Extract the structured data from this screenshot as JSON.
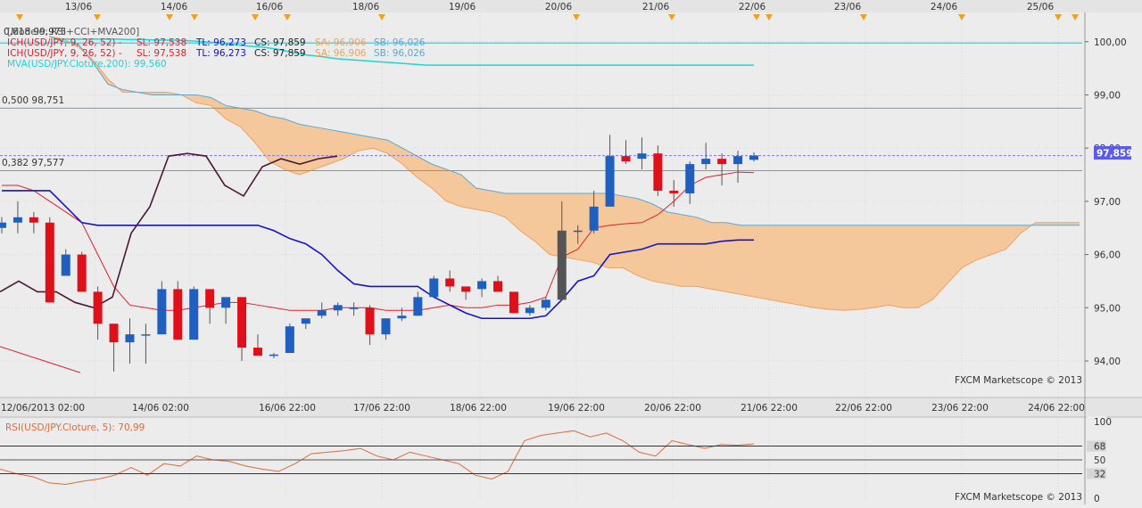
{
  "colors": {
    "background": "#ececec",
    "grid": "#d7d7d7",
    "axis_text": "#333333",
    "up_candle": "#1f5fbf",
    "down_candle": "#e0101a",
    "cloud": "#f6c493",
    "cloud_edge": "#5aa8d2",
    "cyan_line": "#18d7d7",
    "fib_line": "#44b0c8",
    "tenkan": "#e0202a",
    "kijun": "#1414c8",
    "cci": "#4a1838",
    "rsi": "#e06a3a",
    "price_tag": "#5a5aee",
    "marker": "#f0a020"
  },
  "top_date_labels": [
    "13/06",
    "14/06",
    "16/06",
    "18/06",
    "19/06",
    "20/06",
    "21/06",
    "22/06",
    "23/06",
    "24/06",
    "25/06"
  ],
  "bottom_date_labels": [
    "12/06/2013 02:00",
    "14/06 02:00",
    "16/06 22:00",
    "17/06 22:00",
    "18/06 22:00",
    "19/06 22:00",
    "20/06 22:00",
    "21/06 22:00",
    "22/06 22:00",
    "23/06 22:00",
    "24/06 22:00"
  ],
  "legend": {
    "title": "[Modele: RSI+CCI+MVA200]",
    "fib618": "0,618 99,975",
    "ich_prefix": "ICH(USD/JPY, 9, 26, 52) -",
    "sl": "SL: 97,538",
    "tl": "TL: 96,273",
    "cs": "CS: 97,859",
    "sa": "SA: 96,906",
    "sb": "SB: 96,026",
    "mva": "MVA(USD/JPY.Cloture,200): 99,560"
  },
  "fib_labels": {
    "f500": "0,500 98,751",
    "f382": "0,382 97,577"
  },
  "watermark": "FXCM Marketscope © 2013",
  "rsi_label": "RSI(USD/JPY.Cloture, 5): 70,99",
  "chart_data": [
    {
      "type": "candlestick",
      "instrument": "USD/JPY",
      "y_axis": {
        "ticks": [
          "94,00",
          "95,00",
          "96,00",
          "97,00",
          "98,00",
          "99,00",
          "100,00"
        ],
        "range": [
          93.6,
          100.2
        ]
      },
      "current_price": "97,859",
      "fib_levels": [
        {
          "label": "0,618",
          "value": 99.975
        },
        {
          "label": "0,500",
          "value": 98.751
        },
        {
          "label": "0,382",
          "value": 97.577
        }
      ],
      "candles": [
        {
          "o": 96.5,
          "h": 96.7,
          "l": 96.4,
          "c": 96.6
        },
        {
          "o": 96.6,
          "h": 97.0,
          "l": 96.4,
          "c": 96.7
        },
        {
          "o": 96.7,
          "h": 96.8,
          "l": 96.4,
          "c": 96.6
        },
        {
          "o": 96.6,
          "h": 96.7,
          "l": 95.1,
          "c": 95.1
        },
        {
          "o": 95.6,
          "h": 96.1,
          "l": 95.6,
          "c": 96.0
        },
        {
          "o": 96.0,
          "h": 96.05,
          "l": 95.3,
          "c": 95.3
        },
        {
          "o": 95.3,
          "h": 95.4,
          "l": 94.4,
          "c": 94.7
        },
        {
          "o": 94.7,
          "h": 94.7,
          "l": 93.8,
          "c": 94.35
        },
        {
          "o": 94.35,
          "h": 94.8,
          "l": 93.95,
          "c": 94.5
        },
        {
          "o": 94.5,
          "h": 94.7,
          "l": 93.95,
          "c": 94.5
        },
        {
          "o": 94.5,
          "h": 95.5,
          "l": 94.5,
          "c": 95.35
        },
        {
          "o": 95.35,
          "h": 95.5,
          "l": 94.4,
          "c": 94.4
        },
        {
          "o": 94.4,
          "h": 95.4,
          "l": 94.4,
          "c": 95.35
        },
        {
          "o": 95.35,
          "h": 95.35,
          "l": 94.7,
          "c": 95.0
        },
        {
          "o": 95.0,
          "h": 95.2,
          "l": 94.7,
          "c": 95.2
        },
        {
          "o": 95.2,
          "h": 95.2,
          "l": 94.0,
          "c": 94.25
        },
        {
          "o": 94.25,
          "h": 94.5,
          "l": 94.1,
          "c": 94.1
        },
        {
          "o": 94.1,
          "h": 94.15,
          "l": 94.05,
          "c": 94.12
        },
        {
          "o": 94.15,
          "h": 94.7,
          "l": 94.15,
          "c": 94.65
        },
        {
          "o": 94.7,
          "h": 94.8,
          "l": 94.6,
          "c": 94.8
        },
        {
          "o": 94.85,
          "h": 95.1,
          "l": 94.8,
          "c": 94.95
        },
        {
          "o": 94.95,
          "h": 95.1,
          "l": 94.85,
          "c": 95.05
        },
        {
          "o": 95.0,
          "h": 95.1,
          "l": 94.85,
          "c": 95.0
        },
        {
          "o": 95.0,
          "h": 95.05,
          "l": 94.3,
          "c": 94.5
        },
        {
          "o": 94.5,
          "h": 94.8,
          "l": 94.4,
          "c": 94.8
        },
        {
          "o": 94.8,
          "h": 95.0,
          "l": 94.75,
          "c": 94.85
        },
        {
          "o": 94.85,
          "h": 95.3,
          "l": 94.85,
          "c": 95.2
        },
        {
          "o": 95.2,
          "h": 95.6,
          "l": 95.2,
          "c": 95.55
        },
        {
          "o": 95.55,
          "h": 95.7,
          "l": 95.3,
          "c": 95.4
        },
        {
          "o": 95.4,
          "h": 95.4,
          "l": 95.15,
          "c": 95.3
        },
        {
          "o": 95.35,
          "h": 95.55,
          "l": 95.2,
          "c": 95.5
        },
        {
          "o": 95.5,
          "h": 95.6,
          "l": 95.3,
          "c": 95.3
        },
        {
          "o": 95.3,
          "h": 95.3,
          "l": 94.9,
          "c": 94.9
        },
        {
          "o": 94.9,
          "h": 95.05,
          "l": 94.85,
          "c": 95.0
        },
        {
          "o": 95.0,
          "h": 95.2,
          "l": 94.95,
          "c": 95.15
        },
        {
          "o": 95.15,
          "h": 97.0,
          "l": 95.15,
          "c": 96.45
        },
        {
          "o": 96.45,
          "h": 96.55,
          "l": 96.2,
          "c": 96.45
        },
        {
          "o": 96.45,
          "h": 97.2,
          "l": 96.4,
          "c": 96.9
        },
        {
          "o": 96.9,
          "h": 98.25,
          "l": 96.9,
          "c": 97.85
        },
        {
          "o": 97.85,
          "h": 98.15,
          "l": 97.7,
          "c": 97.75
        },
        {
          "o": 97.8,
          "h": 98.2,
          "l": 97.6,
          "c": 97.9
        },
        {
          "o": 97.9,
          "h": 98.05,
          "l": 97.1,
          "c": 97.2
        },
        {
          "o": 97.2,
          "h": 97.4,
          "l": 96.9,
          "c": 97.15
        },
        {
          "o": 97.15,
          "h": 97.75,
          "l": 96.95,
          "c": 97.7
        },
        {
          "o": 97.7,
          "h": 98.1,
          "l": 97.6,
          "c": 97.8
        },
        {
          "o": 97.8,
          "h": 97.9,
          "l": 97.3,
          "c": 97.7
        },
        {
          "o": 97.7,
          "h": 97.95,
          "l": 97.35,
          "c": 97.85
        },
        {
          "o": 97.78,
          "h": 97.92,
          "l": 97.75,
          "c": 97.86
        }
      ],
      "cloud": {
        "senkou_a": [
          100.1,
          100.05,
          99.9,
          99.65,
          99.3,
          99.05,
          99.05,
          99.05,
          99.05,
          99.0,
          98.85,
          98.8,
          98.55,
          98.4,
          98.1,
          97.75,
          97.6,
          97.5,
          97.6,
          97.7,
          97.8,
          97.95,
          98.0,
          97.9,
          97.7,
          97.45,
          97.25,
          97.0,
          96.9,
          96.85,
          96.8,
          96.7,
          96.45,
          96.25,
          96.0,
          95.95,
          95.9,
          95.85,
          95.75,
          95.75,
          95.6,
          95.5,
          95.45,
          95.4,
          95.4,
          95.35,
          95.3,
          95.25,
          95.2,
          95.15,
          95.1,
          95.05,
          95.0,
          94.97,
          94.95,
          94.97,
          95.0,
          95.05,
          95.0,
          95.0,
          95.15,
          95.45,
          95.75,
          95.9,
          96.0,
          96.1,
          96.4,
          96.6,
          96.6,
          96.6,
          96.6
        ],
        "senkou_b": [
          100.1,
          100.0,
          99.95,
          99.6,
          99.2,
          99.1,
          99.05,
          99.0,
          99.0,
          99.0,
          99.0,
          98.95,
          98.8,
          98.75,
          98.7,
          98.6,
          98.55,
          98.45,
          98.4,
          98.35,
          98.3,
          98.25,
          98.2,
          98.15,
          98.0,
          97.85,
          97.7,
          97.6,
          97.5,
          97.25,
          97.2,
          97.15,
          97.15,
          97.15,
          97.15,
          97.15,
          97.15,
          97.15,
          97.15,
          97.1,
          97.05,
          96.95,
          96.8,
          96.75,
          96.7,
          96.6,
          96.6,
          96.55,
          96.55,
          96.55,
          96.55,
          96.55,
          96.55,
          96.55,
          96.55,
          96.55,
          96.55,
          96.55,
          96.55,
          96.55,
          96.55,
          96.55,
          96.55,
          96.55,
          96.55,
          96.55,
          96.55,
          96.55,
          96.55,
          96.55,
          96.55
        ]
      },
      "tenkan_sen": [
        97.3,
        97.3,
        97.2,
        97.0,
        96.8,
        96.6,
        96.0,
        95.4,
        95.05,
        95.0,
        94.95,
        94.95,
        95.0,
        95.05,
        95.1,
        95.1,
        95.05,
        95.0,
        94.95,
        94.95,
        94.95,
        95.0,
        95.0,
        95.0,
        94.95,
        94.95,
        94.95,
        95.0,
        95.05,
        95.0,
        95.0,
        95.05,
        95.05,
        95.1,
        95.2,
        95.95,
        96.1,
        96.5,
        96.55,
        96.58,
        96.6,
        96.75,
        97.0,
        97.3,
        97.45,
        97.5,
        97.55,
        97.538
      ],
      "kijun_sen": [
        97.2,
        97.2,
        97.2,
        97.2,
        96.9,
        96.6,
        96.55,
        96.55,
        96.55,
        96.55,
        96.55,
        96.55,
        96.55,
        96.55,
        96.55,
        96.55,
        96.55,
        96.45,
        96.3,
        96.2,
        96.0,
        95.7,
        95.45,
        95.4,
        95.4,
        95.4,
        95.4,
        95.2,
        95.05,
        94.9,
        94.8,
        94.8,
        94.8,
        94.8,
        94.85,
        95.15,
        95.5,
        95.6,
        96.0,
        96.05,
        96.1,
        96.2,
        96.2,
        96.2,
        96.2,
        96.25,
        96.273,
        96.273
      ],
      "mva200": [
        100.05,
        100.05,
        100.05,
        100.05,
        100.05,
        100.04,
        100.04,
        100.03,
        100.03,
        100.02,
        100.0,
        99.98,
        99.95,
        99.92,
        99.9,
        99.86,
        99.8,
        99.75,
        99.72,
        99.68,
        99.66,
        99.64,
        99.62,
        99.6,
        99.58,
        99.56,
        99.56,
        99.56,
        99.56,
        99.56,
        99.56,
        99.56,
        99.56,
        99.56,
        99.56,
        99.56,
        99.56,
        99.56,
        99.56,
        99.56,
        99.56,
        99.56,
        99.56,
        99.56,
        99.56,
        99.56,
        99.56,
        99.56
      ],
      "cci": [
        95.3,
        95.5,
        95.3,
        95.3,
        95.1,
        95.0,
        95.2,
        96.4,
        96.9,
        97.85,
        97.9,
        97.85,
        97.3,
        97.1,
        97.65,
        97.8,
        97.7,
        97.8,
        97.85
      ]
    },
    {
      "type": "line",
      "title": "RSI(USD/JPY.Cloture, 5): 70,99",
      "y_axis": {
        "ticks": [
          "100",
          "68",
          "50",
          "32",
          "0"
        ],
        "range": [
          0,
          100
        ]
      },
      "values": [
        38,
        32,
        28,
        20,
        18,
        22,
        25,
        30,
        40,
        30,
        45,
        42,
        55,
        50,
        48,
        42,
        38,
        35,
        45,
        58,
        60,
        62,
        65,
        55,
        50,
        60,
        55,
        50,
        45,
        30,
        25,
        35,
        75,
        82,
        85,
        88,
        80,
        85,
        75,
        60,
        55,
        75,
        70,
        65,
        70,
        69,
        71
      ]
    }
  ]
}
